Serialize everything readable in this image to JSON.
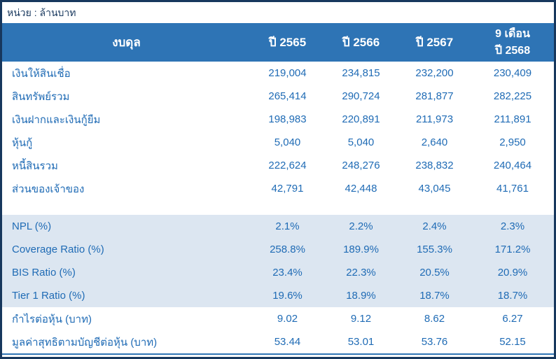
{
  "unit_label": "หน่วย : ล้านบาท",
  "colors": {
    "outer_border": "#17375D",
    "header_bg": "#2E74B5",
    "header_text": "#FFFFFF",
    "body_text": "#1F6BB5",
    "highlight_section_bg": "#DCE6F1",
    "bottom_rule": "#2E74B5"
  },
  "table": {
    "header": {
      "row_label": "งบดุล",
      "col1": "ปี 2565",
      "col2": "ปี 2566",
      "col3": "ปี 2567",
      "col4_line1": "9 เดือน",
      "col4_line2": "ปี 2568"
    },
    "sections": [
      {
        "bg": "white",
        "gap_after": true,
        "rows": [
          {
            "label": "เงินให้สินเชื่อ",
            "values": [
              "219,004",
              "234,815",
              "232,200",
              "230,409"
            ]
          },
          {
            "label": "สินทรัพย์รวม",
            "values": [
              "265,414",
              "290,724",
              "281,877",
              "282,225"
            ]
          },
          {
            "label": "เงินฝากและเงินกู้ยืม",
            "values": [
              "198,983",
              "220,891",
              "211,973",
              "211,891"
            ]
          },
          {
            "label": "หุ้นกู้",
            "values": [
              "5,040",
              "5,040",
              "2,640",
              "2,950"
            ]
          },
          {
            "label": "หนี้สินรวม",
            "values": [
              "222,624",
              "248,276",
              "238,832",
              "240,464"
            ]
          },
          {
            "label": "ส่วนของเจ้าของ",
            "values": [
              "42,791",
              "42,448",
              "43,045",
              "41,761"
            ]
          }
        ]
      },
      {
        "bg": "highlight",
        "gap_after": false,
        "rows": [
          {
            "label": "NPL (%)",
            "values": [
              "2.1%",
              "2.2%",
              "2.4%",
              "2.3%"
            ]
          },
          {
            "label": "Coverage Ratio (%)",
            "values": [
              "258.8%",
              "189.9%",
              "155.3%",
              "171.2%"
            ]
          },
          {
            "label": "BIS Ratio (%)",
            "values": [
              "23.4%",
              "22.3%",
              "20.5%",
              "20.9%"
            ]
          },
          {
            "label": "Tier 1 Ratio (%)",
            "values": [
              "19.6%",
              "18.9%",
              "18.7%",
              "18.7%"
            ]
          }
        ]
      },
      {
        "bg": "white",
        "gap_after": false,
        "rows": [
          {
            "label": "กำไรต่อหุ้น (บาท)",
            "values": [
              "9.02",
              "9.12",
              "8.62",
              "6.27"
            ]
          },
          {
            "label": "มูลค่าสุทธิตามบัญชีต่อหุ้น (บาท)",
            "values": [
              "53.44",
              "53.01",
              "53.76",
              "52.15"
            ]
          }
        ]
      }
    ]
  },
  "chart_data": {
    "type": "table",
    "title": "งบดุล",
    "unit": "ล้านบาท",
    "columns": [
      "ปี 2565",
      "ปี 2566",
      "ปี 2567",
      "9 เดือน ปี 2568"
    ],
    "rows": [
      {
        "label": "เงินให้สินเชื่อ",
        "values": [
          219004,
          234815,
          232200,
          230409
        ]
      },
      {
        "label": "สินทรัพย์รวม",
        "values": [
          265414,
          290724,
          281877,
          282225
        ]
      },
      {
        "label": "เงินฝากและเงินกู้ยืม",
        "values": [
          198983,
          220891,
          211973,
          211891
        ]
      },
      {
        "label": "หุ้นกู้",
        "values": [
          5040,
          5040,
          2640,
          2950
        ]
      },
      {
        "label": "หนี้สินรวม",
        "values": [
          222624,
          248276,
          238832,
          240464
        ]
      },
      {
        "label": "ส่วนของเจ้าของ",
        "values": [
          42791,
          42448,
          43045,
          41761
        ]
      },
      {
        "label": "NPL (%)",
        "values": [
          2.1,
          2.2,
          2.4,
          2.3
        ]
      },
      {
        "label": "Coverage Ratio (%)",
        "values": [
          258.8,
          189.9,
          155.3,
          171.2
        ]
      },
      {
        "label": "BIS Ratio (%)",
        "values": [
          23.4,
          22.3,
          20.5,
          20.9
        ]
      },
      {
        "label": "Tier 1 Ratio (%)",
        "values": [
          19.6,
          18.9,
          18.7,
          18.7
        ]
      },
      {
        "label": "กำไรต่อหุ้น (บาท)",
        "values": [
          9.02,
          9.12,
          8.62,
          6.27
        ]
      },
      {
        "label": "มูลค่าสุทธิตามบัญชีต่อหุ้น (บาท)",
        "values": [
          53.44,
          53.01,
          53.76,
          52.15
        ]
      }
    ]
  }
}
